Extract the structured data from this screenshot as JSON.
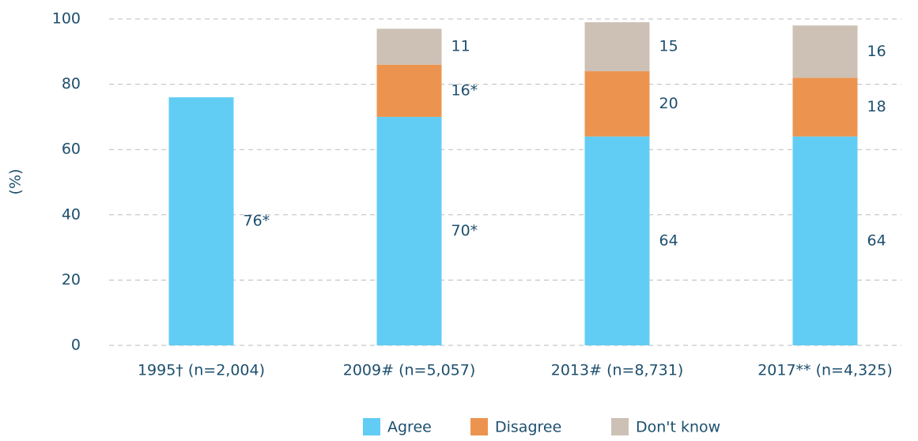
{
  "chart_data": {
    "type": "stacked_bar",
    "y_label": "(%)",
    "categories": [
      "1995† (n=2,004)",
      "2009# (n=5,057)",
      "2013# (n=8,731)",
      "2017** (n=4,325)"
    ],
    "series": [
      {
        "name": "Agree",
        "color": "#62cdf4",
        "values": [
          76,
          70,
          64,
          64
        ],
        "value_labels": [
          "76*",
          "70*",
          "64",
          "64"
        ]
      },
      {
        "name": "Disagree",
        "color": "#ec944f",
        "values": [
          null,
          16,
          20,
          18
        ],
        "value_labels": [
          null,
          "16*",
          "20",
          "18"
        ]
      },
      {
        "name": "Don't know",
        "color": "#cdc1b5",
        "values": [
          null,
          11,
          15,
          16
        ]
      }
    ],
    "ylim": [
      0,
      100
    ],
    "yticks": [
      0,
      20,
      40,
      60,
      80,
      100
    ],
    "grid": true,
    "legend": "bottom"
  }
}
